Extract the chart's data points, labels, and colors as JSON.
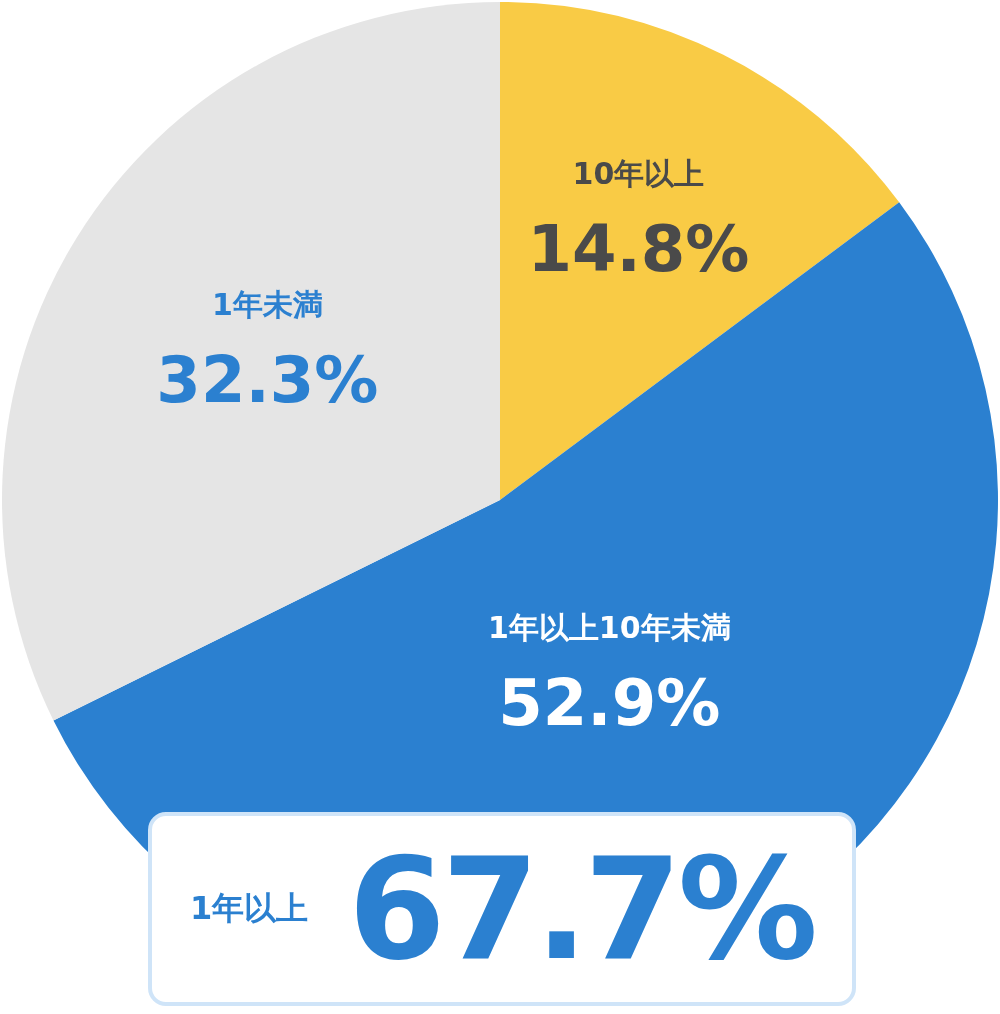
{
  "chart_data": {
    "type": "pie",
    "categories": [
      "10年以上",
      "1年以上10年未満",
      "1年未満"
    ],
    "values": [
      14.8,
      52.9,
      32.3
    ],
    "colors": [
      "#f9cb45",
      "#2b80d0",
      "#e5e5e5"
    ],
    "value_labels": [
      "14.8%",
      "52.9%",
      "32.3%"
    ],
    "legend": false,
    "annotations": [
      "1年以上",
      "67.7%"
    ]
  }
}
